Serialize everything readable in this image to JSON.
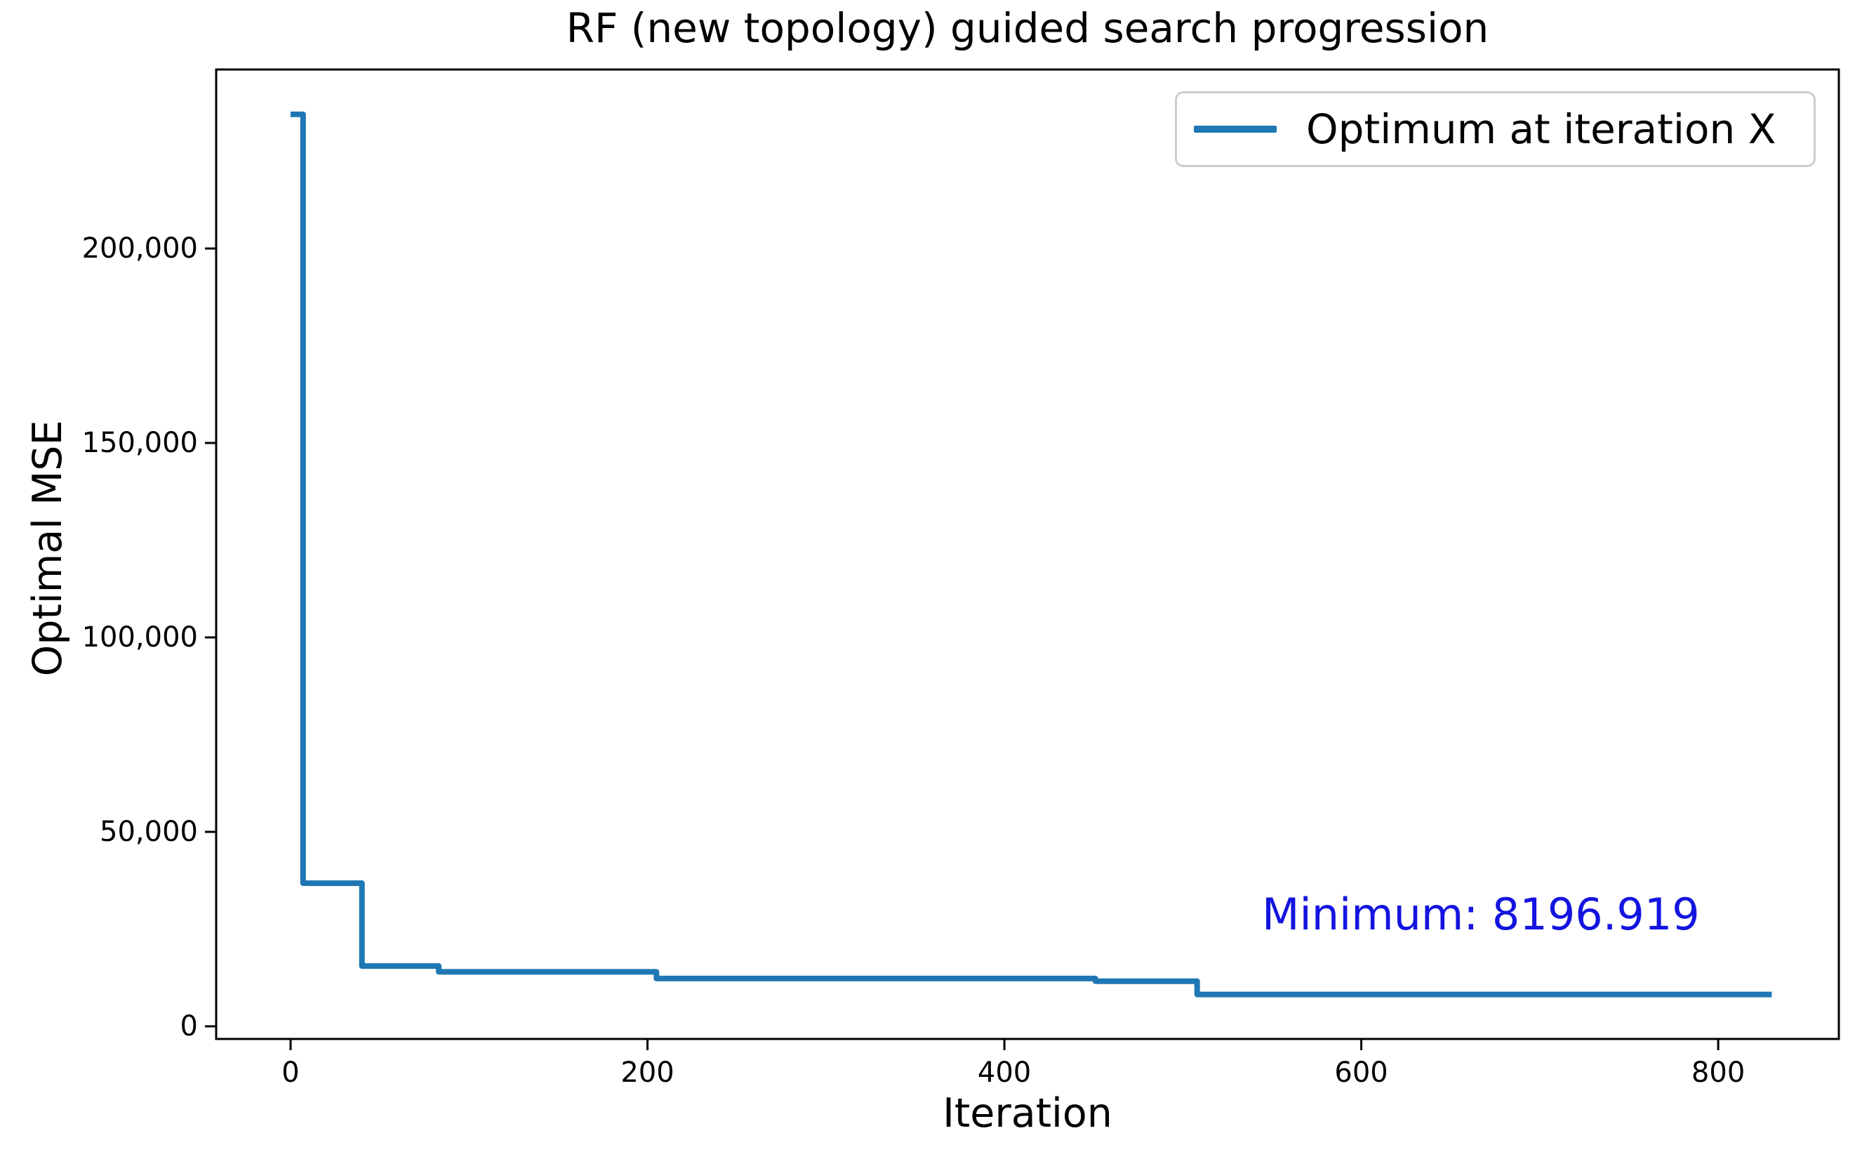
{
  "title": "RF (new topology) guided search progression",
  "axes": {
    "x_label": "Iteration",
    "y_label": "Optimal MSE"
  },
  "legend": {
    "label": "Optimum at iteration X"
  },
  "annotation": {
    "text": "Minimum: 8196.919",
    "color": "#1414e0"
  },
  "colors": {
    "series": "#1f77b4",
    "spine": "#000000"
  },
  "chart_data": {
    "type": "line",
    "title": "RF (new topology) guided search progression",
    "xlabel": "Iteration",
    "ylabel": "Optimal MSE",
    "legend_position": "upper right",
    "grid": false,
    "xlim": [
      -41.7,
      867.6
    ],
    "ylim": [
      -3249,
      246029
    ],
    "x_ticks": [
      {
        "value": 0,
        "label": "0"
      },
      {
        "value": 200,
        "label": "200"
      },
      {
        "value": 400,
        "label": "400"
      },
      {
        "value": 600,
        "label": "600"
      },
      {
        "value": 800,
        "label": "800"
      }
    ],
    "y_ticks": [
      {
        "value": 0,
        "label": "0"
      },
      {
        "value": 50000,
        "label": "50,000"
      },
      {
        "value": 100000,
        "label": "100,000"
      },
      {
        "value": 150000,
        "label": "150,000"
      },
      {
        "value": 200000,
        "label": "200,000"
      }
    ],
    "minimum": 8196.919,
    "series": [
      {
        "name": "Optimum at iteration X",
        "color": "#1f77b4",
        "points": [
          [
            0,
            234500
          ],
          [
            7,
            234500
          ],
          [
            7,
            36800
          ],
          [
            40,
            36800
          ],
          [
            40,
            15500
          ],
          [
            83,
            15500
          ],
          [
            83,
            14000
          ],
          [
            205,
            14000
          ],
          [
            205,
            12300
          ],
          [
            451,
            12300
          ],
          [
            451,
            11600
          ],
          [
            508,
            11600
          ],
          [
            508,
            8196.919
          ],
          [
            830,
            8196.919
          ]
        ]
      }
    ]
  }
}
